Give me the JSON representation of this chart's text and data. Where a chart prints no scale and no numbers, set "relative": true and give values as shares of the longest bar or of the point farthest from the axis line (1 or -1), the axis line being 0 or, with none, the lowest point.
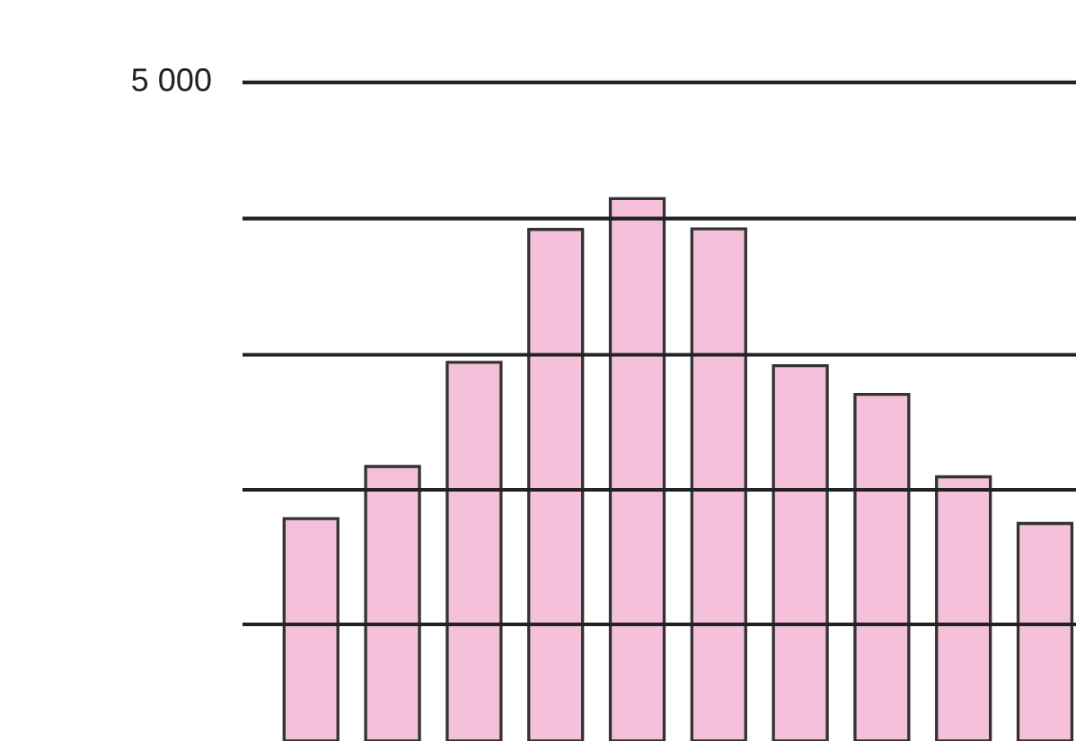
{
  "chart_data": {
    "type": "bar",
    "relative": true,
    "categories": [
      null,
      null,
      null,
      null,
      null,
      null,
      null,
      null,
      null,
      null
    ],
    "series": [
      {
        "color": "#f5c0d9",
        "values": [
          0.41,
          0.506,
          0.698,
          0.943,
          1,
          0.944,
          0.692,
          0.639,
          0.487,
          0.401
        ]
      }
    ],
    "ref_lines": [
      {
        "axis": "y",
        "value": 1.214,
        "color": "#222222"
      },
      {
        "axis": "y",
        "value": 0.963,
        "color": "#222222"
      },
      {
        "axis": "y",
        "value": 0.712,
        "color": "#222222"
      },
      {
        "axis": "y",
        "value": 0.463,
        "color": "#222222"
      },
      {
        "axis": "y",
        "value": 0.215,
        "color": "#222222"
      }
    ],
    "annotations": [
      "5 000"
    ]
  }
}
